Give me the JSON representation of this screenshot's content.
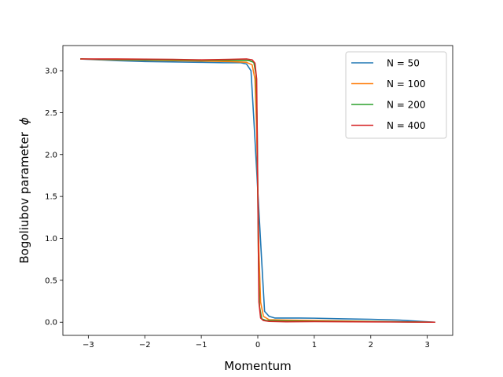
{
  "chart_data": {
    "type": "line",
    "title": "",
    "xlabel": "Momentum",
    "ylabel": "Bogoliubov parameter",
    "ylabel_symbol": "ϕ",
    "xlim": [
      -3.45,
      3.45
    ],
    "ylim": [
      -0.157,
      3.3
    ],
    "xticks": [
      -3,
      -2,
      -1,
      0,
      1,
      2,
      3
    ],
    "xtick_labels": [
      "−3",
      "−2",
      "−1",
      "0",
      "1",
      "2",
      "3"
    ],
    "yticks": [
      0.0,
      0.5,
      1.0,
      1.5,
      2.0,
      2.5,
      3.0
    ],
    "ytick_labels": [
      "0.0",
      "0.5",
      "1.0",
      "1.5",
      "2.0",
      "2.5",
      "3.0"
    ],
    "grid": false,
    "legend": "top-right",
    "series": [
      {
        "name": "N = 50",
        "color": "#1f77b4",
        "points": [
          [
            -3.14,
            3.14
          ],
          [
            -2.5,
            3.12
          ],
          [
            -2.0,
            3.11
          ],
          [
            -1.5,
            3.105
          ],
          [
            -1.0,
            3.1
          ],
          [
            -0.6,
            3.095
          ],
          [
            -0.3,
            3.095
          ],
          [
            -0.2,
            3.08
          ],
          [
            -0.12,
            3.0
          ],
          [
            -0.06,
            2.3
          ],
          [
            0.0,
            1.57
          ],
          [
            0.06,
            0.84
          ],
          [
            0.12,
            0.13
          ],
          [
            0.2,
            0.07
          ],
          [
            0.3,
            0.05
          ],
          [
            0.6,
            0.05
          ],
          [
            1.0,
            0.048
          ],
          [
            1.5,
            0.04
          ],
          [
            2.0,
            0.035
          ],
          [
            2.5,
            0.025
          ],
          [
            3.14,
            0.0
          ]
        ]
      },
      {
        "name": "N = 100",
        "color": "#ff7f0e",
        "points": [
          [
            -3.14,
            3.14
          ],
          [
            -2.5,
            3.13
          ],
          [
            -2.0,
            3.125
          ],
          [
            -1.5,
            3.12
          ],
          [
            -1.0,
            3.115
          ],
          [
            -0.5,
            3.11
          ],
          [
            -0.2,
            3.1
          ],
          [
            -0.1,
            3.07
          ],
          [
            -0.05,
            2.9
          ],
          [
            -0.02,
            2.3
          ],
          [
            0.0,
            1.57
          ],
          [
            0.02,
            0.84
          ],
          [
            0.05,
            0.24
          ],
          [
            0.1,
            0.07
          ],
          [
            0.2,
            0.03
          ],
          [
            0.5,
            0.025
          ],
          [
            1.0,
            0.02
          ],
          [
            2.0,
            0.01
          ],
          [
            3.14,
            0.0
          ]
        ]
      },
      {
        "name": "N = 200",
        "color": "#2ca02c",
        "points": [
          [
            -3.14,
            3.14
          ],
          [
            -2.5,
            3.135
          ],
          [
            -2.0,
            3.13
          ],
          [
            -1.5,
            3.128
          ],
          [
            -1.0,
            3.125
          ],
          [
            -0.5,
            3.125
          ],
          [
            -0.15,
            3.12
          ],
          [
            -0.07,
            3.1
          ],
          [
            -0.03,
            2.95
          ],
          [
            -0.01,
            2.3
          ],
          [
            0.0,
            1.57
          ],
          [
            0.01,
            0.84
          ],
          [
            0.03,
            0.19
          ],
          [
            0.07,
            0.04
          ],
          [
            0.15,
            0.02
          ],
          [
            0.5,
            0.015
          ],
          [
            1.0,
            0.012
          ],
          [
            2.0,
            0.008
          ],
          [
            3.14,
            0.0
          ]
        ]
      },
      {
        "name": "N = 400",
        "color": "#d62728",
        "points": [
          [
            -3.14,
            3.14
          ],
          [
            -2.5,
            3.14
          ],
          [
            -2.0,
            3.138
          ],
          [
            -1.5,
            3.136
          ],
          [
            -1.0,
            3.13
          ],
          [
            -0.5,
            3.135
          ],
          [
            -0.2,
            3.14
          ],
          [
            -0.1,
            3.13
          ],
          [
            -0.05,
            3.09
          ],
          [
            -0.02,
            2.9
          ],
          [
            0.0,
            1.57
          ],
          [
            0.02,
            0.24
          ],
          [
            0.05,
            0.05
          ],
          [
            0.1,
            0.02
          ],
          [
            0.2,
            0.01
          ],
          [
            0.5,
            0.005
          ],
          [
            1.0,
            0.008
          ],
          [
            2.0,
            0.004
          ],
          [
            3.14,
            0.0
          ]
        ]
      }
    ]
  }
}
